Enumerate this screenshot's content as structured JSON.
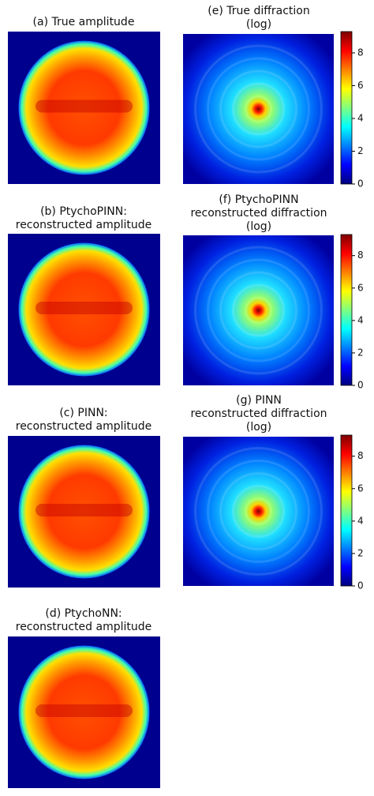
{
  "panels": [
    {
      "title": [
        "(a) True amplitude"
      ]
    },
    {
      "title": [
        "(b) PtychoPINN:",
        "reconstructed amplitude"
      ]
    },
    {
      "title": [
        "(c) PINN:",
        "reconstructed amplitude"
      ]
    },
    {
      "title": [
        "(d) PtychoNN:",
        "reconstructed amplitude"
      ]
    },
    {
      "title": [
        "(e) True diffraction",
        "(log)"
      ],
      "colorbar": {
        "clim": [
          0,
          9.3
        ],
        "ticks": [
          0,
          2,
          4,
          6,
          8
        ]
      }
    },
    {
      "title": [
        "(f) PtychoPINN",
        "reconstructed diffraction",
        "(log)"
      ],
      "colorbar": {
        "clim": [
          0,
          9.3
        ],
        "ticks": [
          0,
          2,
          4,
          6,
          8
        ]
      }
    },
    {
      "title": [
        "(g) PINN",
        "reconstructed diffraction",
        "(log)"
      ],
      "colorbar": {
        "clim": [
          0,
          9.3
        ],
        "ticks": [
          0,
          2,
          4,
          6,
          8
        ]
      }
    }
  ]
}
